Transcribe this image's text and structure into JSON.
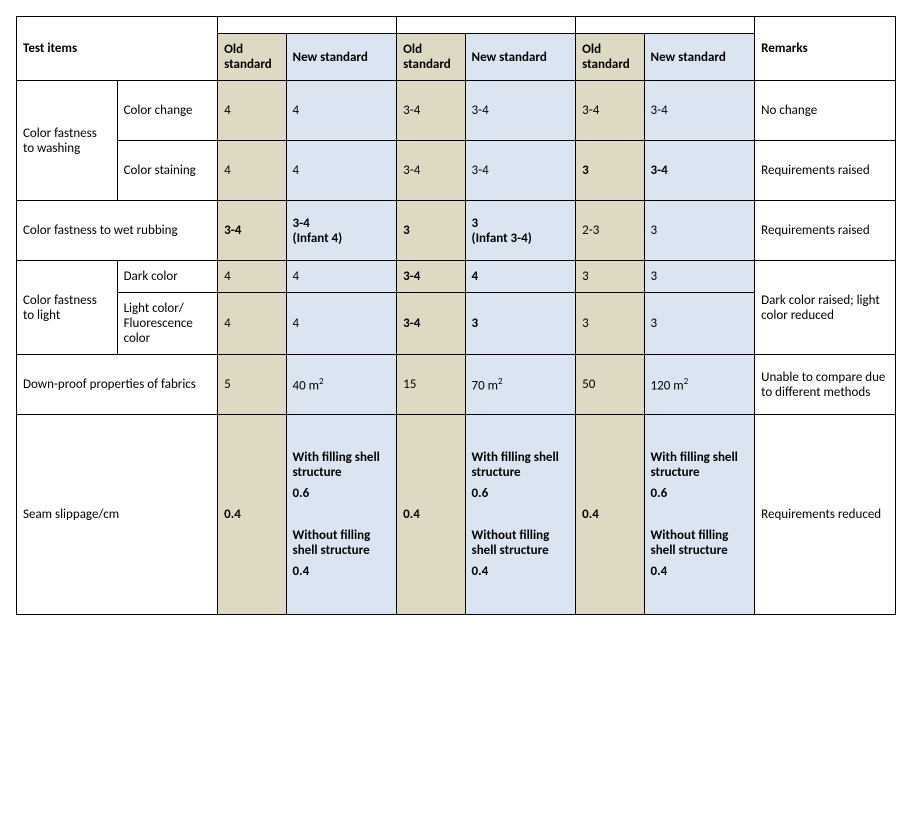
{
  "colors": {
    "old_bg": "#ddd9c3",
    "new_bg": "#dbe5f1",
    "border": "#000000",
    "text": "#000000"
  },
  "header": {
    "test_items": "Test items",
    "old_standard": "Old standard",
    "new_standard": "New standard",
    "remarks": "Remarks"
  },
  "rows": {
    "washing": {
      "group": "Color fastness to washing",
      "change": {
        "label": "Color change",
        "old1": "4",
        "new1": "4",
        "old2": "3-4",
        "new2": "3-4",
        "old3": "3-4",
        "new3": "3-4",
        "remark": "No change"
      },
      "staining": {
        "label": "Color staining",
        "old1": "4",
        "new1": "4",
        "old2": "3-4",
        "new2": "3-4",
        "old3": "3",
        "new3": "3-4",
        "remark": "Requirements raised"
      }
    },
    "wet_rubbing": {
      "label": "Color fastness to wet rubbing",
      "old1": "3-4",
      "new1_a": "3-4",
      "new1_b": "(Infant 4)",
      "old2": "3",
      "new2_a": "3",
      "new2_b": "(Infant 3-4)",
      "old3": "2-3",
      "new3": "3",
      "remark": "Requirements raised"
    },
    "light": {
      "group": "Color fastness to light",
      "dark": {
        "label": "Dark color",
        "old1": "4",
        "new1": "4",
        "old2": "3-4",
        "new2": "4",
        "old3": "3",
        "new3": "3"
      },
      "light": {
        "label": "Light color/ Fluorescence color",
        "old1": "4",
        "new1": "4",
        "old2": "3-4",
        "new2": "3",
        "old3": "3",
        "new3": "3"
      },
      "remark": "Dark color raised; light color reduced"
    },
    "down_proof": {
      "label": "Down-proof properties of fabrics",
      "old1": "5",
      "new1": "40 m²",
      "old2": "15",
      "new2": "70 m²",
      "old3": "50",
      "new3": "120 m²",
      "remark": "Unable to compare due to different methods"
    },
    "seam": {
      "label": "Seam slippage/cm",
      "old1": "0.4",
      "old2": "0.4",
      "old3": "0.4",
      "with_label": "With filling shell structure",
      "with_val": "0.6",
      "without_label": "Without filling shell structure",
      "without_val": "0.4",
      "remark": "Requirements reduced"
    }
  }
}
